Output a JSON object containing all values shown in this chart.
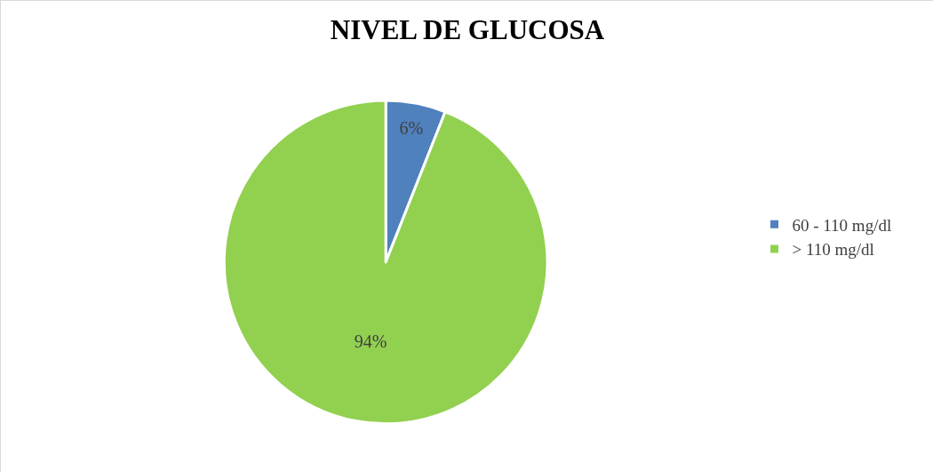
{
  "chart_data": {
    "type": "pie",
    "title": "NIVEL DE GLUCOSA",
    "categories": [
      "60 - 110 mg/dl",
      "> 110 mg/dl"
    ],
    "values": [
      6,
      94
    ],
    "colors": [
      "#4f81bd",
      "#92d050"
    ],
    "value_labels": [
      "6%",
      "94%"
    ],
    "legend": "right"
  }
}
